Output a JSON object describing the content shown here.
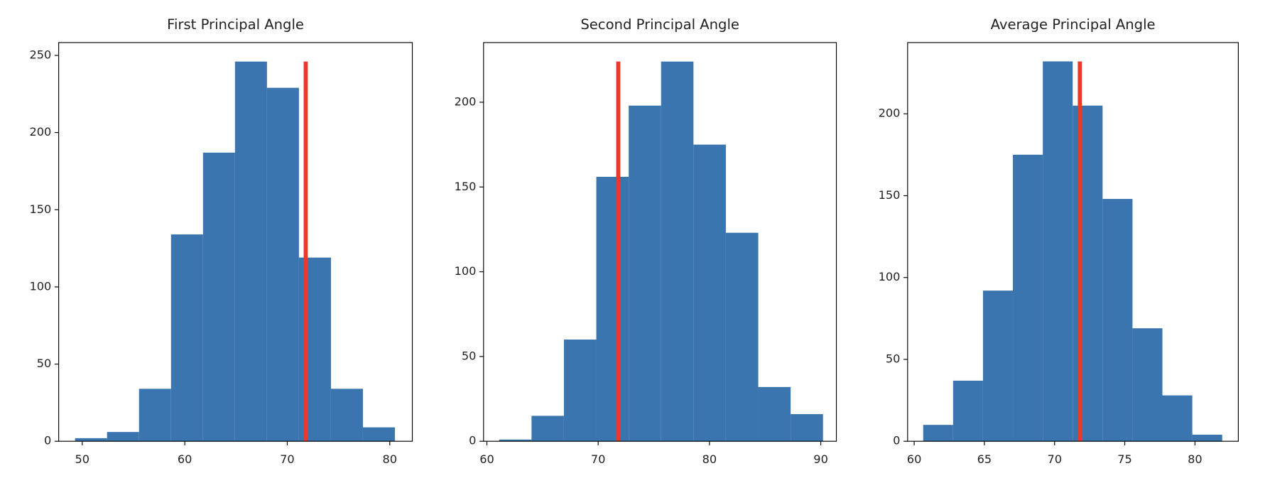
{
  "chart_data": [
    {
      "type": "histogram",
      "title": "First Principal Angle",
      "bins": [
        49.3,
        52.42,
        55.54,
        58.66,
        61.78,
        64.9,
        68.02,
        71.14,
        74.26,
        77.38,
        80.5
      ],
      "counts": [
        2,
        6,
        34,
        134,
        187,
        246,
        229,
        119,
        34,
        9
      ],
      "color": "#3b75af",
      "vline": {
        "x": 71.8,
        "ymax": 246,
        "color": "#e8392b"
      },
      "xlim": [
        47.7,
        82.2
      ],
      "ylim": [
        0,
        258.3
      ],
      "xticks": [
        50,
        60,
        70,
        80
      ],
      "yticks": [
        0,
        50,
        100,
        150,
        200,
        250
      ]
    },
    {
      "type": "histogram",
      "title": "Second Principal Angle",
      "bins": [
        61.1,
        64.01,
        66.92,
        69.83,
        72.74,
        75.65,
        78.56,
        81.47,
        84.38,
        87.29,
        90.2
      ],
      "counts": [
        1,
        15,
        60,
        156,
        198,
        224,
        175,
        123,
        32,
        16
      ],
      "color": "#3b75af",
      "vline": {
        "x": 71.8,
        "ymax": 224,
        "color": "#e8392b"
      },
      "xlim": [
        59.7,
        91.4
      ],
      "ylim": [
        0,
        235.2
      ],
      "xticks": [
        60,
        70,
        80,
        90
      ],
      "yticks": [
        0,
        50,
        100,
        150,
        200
      ]
    },
    {
      "type": "histogram",
      "title": "Average Principal Angle",
      "bins": [
        60.64,
        62.77,
        64.9,
        67.03,
        69.16,
        71.29,
        73.42,
        75.55,
        77.68,
        79.81,
        81.94
      ],
      "counts": [
        10,
        37,
        92,
        175,
        232,
        205,
        148,
        69,
        28,
        4
      ],
      "color": "#3b75af",
      "vline": {
        "x": 71.8,
        "ymax": 232,
        "color": "#e8392b"
      },
      "xlim": [
        59.53,
        83.09
      ],
      "ylim": [
        0,
        243.5
      ],
      "xticks": [
        60,
        65,
        70,
        75,
        80
      ],
      "yticks": [
        0,
        50,
        100,
        150,
        200
      ]
    }
  ]
}
